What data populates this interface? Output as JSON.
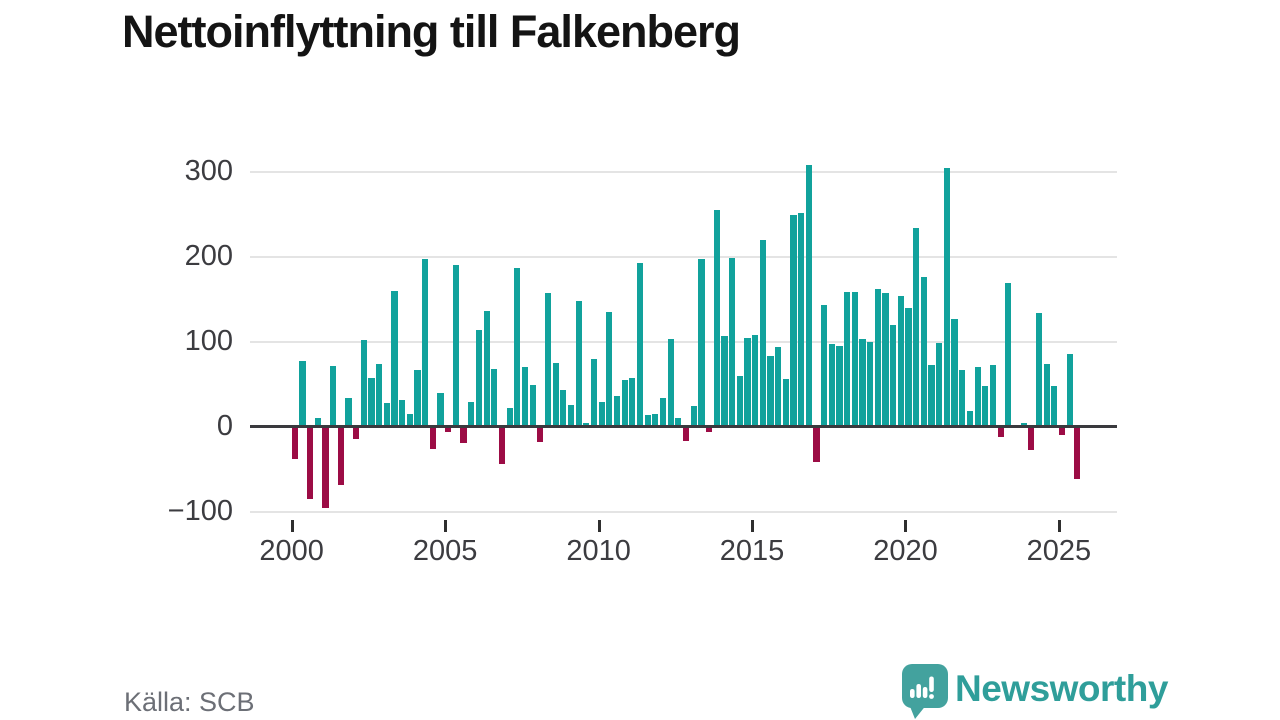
{
  "title": "Nettoinflyttning till Falkenberg",
  "source": "Källa: SCB",
  "brand": {
    "name": "Newsworthy"
  },
  "colors": {
    "positive": "#11a29c",
    "negative": "#9c0c45",
    "grid": "#e4e4e4",
    "axis": "#3a3a3e",
    "tick_label": "#3c3c40",
    "title": "#141414",
    "source": "#6c6f76",
    "brand_teal": "#2f9e9a",
    "logo_teal": "#43a29e"
  },
  "chart_data": {
    "type": "bar",
    "title": "Nettoinflyttning till Falkenberg",
    "xlabel": "",
    "ylabel": "",
    "ylim": [
      -100,
      315
    ],
    "grid": true,
    "y_ticks": [
      300,
      200,
      100,
      0,
      -100
    ],
    "y_tick_labels": [
      "300",
      "200",
      "100",
      "0",
      "−100"
    ],
    "x_ticks": [
      2000,
      2005,
      2010,
      2015,
      2020,
      2025
    ],
    "x_tick_labels": [
      "2000",
      "2005",
      "2010",
      "2015",
      "2020",
      "2025"
    ],
    "quarter_format": "Q",
    "series_by_year": [
      {
        "year": 2000,
        "values": [
          -38,
          77,
          -85,
          10
        ]
      },
      {
        "year": 2001,
        "values": [
          -96,
          71,
          -69,
          34
        ]
      },
      {
        "year": 2002,
        "values": [
          -15,
          102,
          57,
          74
        ]
      },
      {
        "year": 2003,
        "values": [
          28,
          159,
          31,
          15
        ]
      },
      {
        "year": 2004,
        "values": [
          66,
          197,
          -27,
          40
        ]
      },
      {
        "year": 2005,
        "values": [
          -7,
          190,
          -19,
          29
        ]
      },
      {
        "year": 2006,
        "values": [
          113,
          136,
          68,
          -44
        ]
      },
      {
        "year": 2007,
        "values": [
          22,
          187,
          70,
          49
        ]
      },
      {
        "year": 2008,
        "values": [
          -18,
          157,
          75,
          43
        ]
      },
      {
        "year": 2009,
        "values": [
          25,
          148,
          4,
          79
        ]
      },
      {
        "year": 2010,
        "values": [
          29,
          135,
          36,
          55
        ]
      },
      {
        "year": 2011,
        "values": [
          57,
          192,
          14,
          15
        ]
      },
      {
        "year": 2012,
        "values": [
          34,
          103,
          10,
          -17
        ]
      },
      {
        "year": 2013,
        "values": [
          24,
          197,
          -6,
          255
        ]
      },
      {
        "year": 2014,
        "values": [
          107,
          198,
          59,
          104
        ]
      },
      {
        "year": 2015,
        "values": [
          108,
          219,
          83,
          93
        ]
      },
      {
        "year": 2016,
        "values": [
          56,
          249,
          251,
          308
        ]
      },
      {
        "year": 2017,
        "values": [
          -42,
          143,
          97,
          95
        ]
      },
      {
        "year": 2018,
        "values": [
          158,
          158,
          103,
          100
        ]
      },
      {
        "year": 2019,
        "values": [
          162,
          157,
          120,
          154
        ]
      },
      {
        "year": 2020,
        "values": [
          139,
          233,
          176,
          72
        ]
      },
      {
        "year": 2021,
        "values": [
          98,
          304,
          126,
          66
        ]
      },
      {
        "year": 2022,
        "values": [
          18,
          70,
          48,
          72
        ]
      },
      {
        "year": 2023,
        "values": [
          -12,
          169,
          0,
          4
        ]
      },
      {
        "year": 2024,
        "values": [
          -28,
          133,
          73,
          48
        ]
      },
      {
        "year": 2025,
        "values": [
          -10,
          85,
          -62
        ]
      }
    ]
  }
}
